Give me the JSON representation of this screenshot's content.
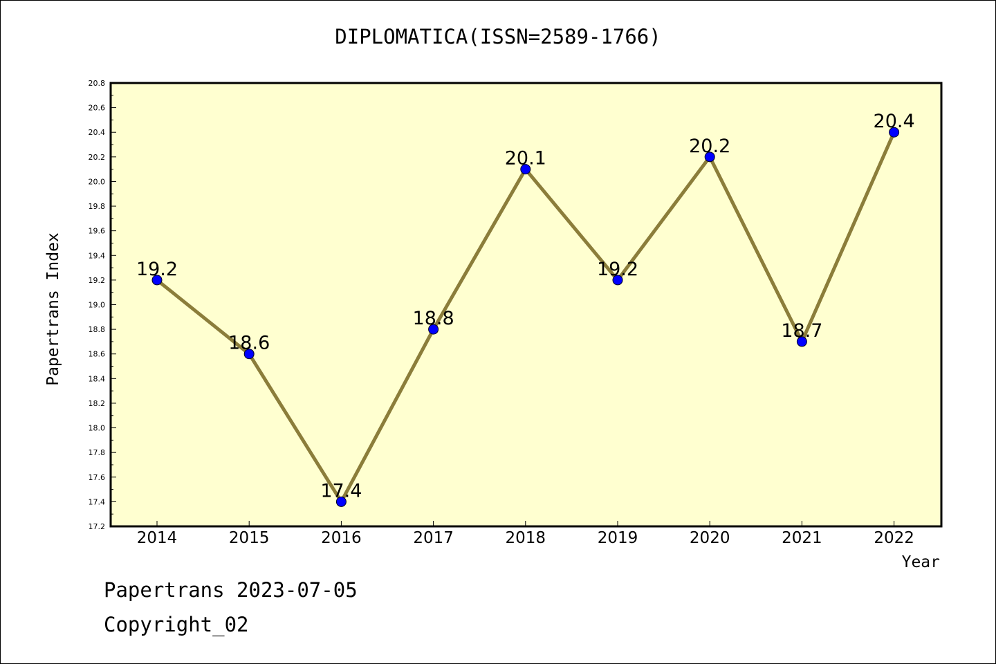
{
  "title": "DIPLOMATICA(ISSN=2589-1766)",
  "footer": {
    "line1": "Papertrans 2023-07-05",
    "line2": "Copyright_02"
  },
  "colors": {
    "plot_background": "#ffffd0",
    "line": "#8b7d3a",
    "marker": "#0000ff"
  },
  "chart_data": {
    "type": "line",
    "xlabel": "Year",
    "ylabel": "Papertrans Index",
    "ylim": [
      17.2,
      20.8
    ],
    "yticks": [
      "17.2",
      "17.4",
      "17.6",
      "17.8",
      "18.0",
      "18.2",
      "18.4",
      "18.6",
      "18.8",
      "19.0",
      "19.2",
      "19.4",
      "19.6",
      "19.8",
      "20.0",
      "20.2",
      "20.4",
      "20.6",
      "20.8"
    ],
    "categories": [
      "2014",
      "2015",
      "2016",
      "2017",
      "2018",
      "2019",
      "2020",
      "2021",
      "2022"
    ],
    "values": [
      19.2,
      18.6,
      17.4,
      18.8,
      20.1,
      19.2,
      20.2,
      18.7,
      20.4
    ],
    "data_labels": [
      "19.2",
      "18.6",
      "17.4",
      "18.8",
      "20.1",
      "19.2",
      "20.2",
      "18.7",
      "20.4"
    ],
    "grid": false,
    "legend": "none"
  }
}
